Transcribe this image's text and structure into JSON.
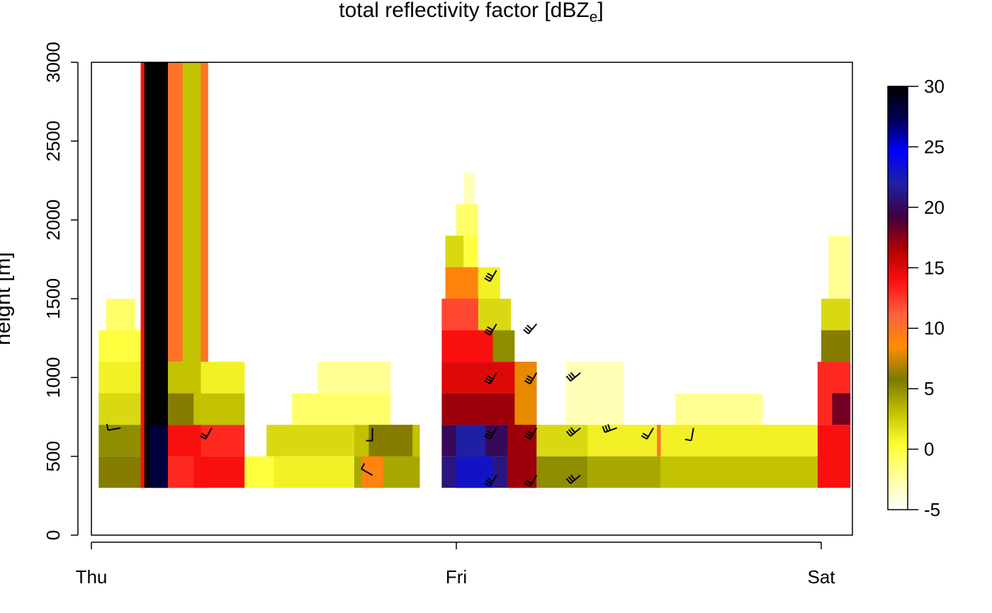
{
  "chart_data": {
    "type": "heatmap",
    "title": "total reflectivity factor [dBZ",
    "title_subscript": "e",
    "title_suffix": "]",
    "ylabel": "height [m]",
    "x_ticks": [
      "Thu",
      "Fri",
      "Sat"
    ],
    "y_ticks": [
      0,
      500,
      1000,
      1500,
      2000,
      2500,
      3000
    ],
    "xlim_days": [
      0,
      2.08
    ],
    "ylim": [
      0,
      3000
    ],
    "colorbar": {
      "ticks": [
        -5,
        0,
        5,
        10,
        15,
        20,
        25,
        30
      ],
      "range": [
        -5,
        30
      ],
      "colors": [
        "#ffffff",
        "#ffffa0",
        "#ffff30",
        "#c0c000",
        "#7a7a00",
        "#ff8c00",
        "#ff6040",
        "#ff1010",
        "#b00000",
        "#400040",
        "#2020a0",
        "#0000ff",
        "#000050",
        "#000000"
      ]
    },
    "height_levels_m": [
      300,
      500,
      700,
      900,
      1100,
      1300,
      1500,
      1700,
      1900,
      2100,
      2300,
      2500,
      2700,
      2900,
      3000
    ],
    "segments": [
      {
        "x": [
          0.02,
          0.14
        ],
        "y": [
          300,
          500
        ],
        "dbz": 6
      },
      {
        "x": [
          0.02,
          0.14
        ],
        "y": [
          500,
          700
        ],
        "dbz": 5
      },
      {
        "x": [
          0.02,
          0.14
        ],
        "y": [
          700,
          900
        ],
        "dbz": 2
      },
      {
        "x": [
          0.02,
          0.14
        ],
        "y": [
          900,
          1100
        ],
        "dbz": 1
      },
      {
        "x": [
          0.02,
          0.14
        ],
        "y": [
          1100,
          1300
        ],
        "dbz": 0
      },
      {
        "x": [
          0.04,
          0.12
        ],
        "y": [
          1300,
          1500
        ],
        "dbz": -1
      },
      {
        "x": [
          0.14,
          0.21
        ],
        "y": [
          300,
          3000
        ],
        "dbz": 30
      },
      {
        "x": [
          0.135,
          0.145
        ],
        "y": [
          300,
          3000
        ],
        "dbz": 14
      },
      {
        "x": [
          0.16,
          0.21
        ],
        "y": [
          300,
          700
        ],
        "dbz": 28
      },
      {
        "x": [
          0.21,
          0.28
        ],
        "y": [
          300,
          500
        ],
        "dbz": 11
      },
      {
        "x": [
          0.21,
          0.3
        ],
        "y": [
          500,
          700
        ],
        "dbz": 14
      },
      {
        "x": [
          0.21,
          0.3
        ],
        "y": [
          700,
          900
        ],
        "dbz": 6
      },
      {
        "x": [
          0.21,
          0.3
        ],
        "y": [
          900,
          1100
        ],
        "dbz": 3
      },
      {
        "x": [
          0.21,
          0.32
        ],
        "y": [
          300,
          500
        ],
        "dbz": 13
      },
      {
        "x": [
          0.28,
          0.42
        ],
        "y": [
          300,
          500
        ],
        "dbz": 14
      },
      {
        "x": [
          0.3,
          0.42
        ],
        "y": [
          500,
          700
        ],
        "dbz": 13
      },
      {
        "x": [
          0.28,
          0.42
        ],
        "y": [
          700,
          900
        ],
        "dbz": 3
      },
      {
        "x": [
          0.3,
          0.42
        ],
        "y": [
          900,
          1100
        ],
        "dbz": 1
      },
      {
        "x": [
          0.21,
          0.32
        ],
        "y": [
          1100,
          3000
        ],
        "dbz": 10
      },
      {
        "x": [
          0.25,
          0.3
        ],
        "y": [
          1100,
          3000
        ],
        "dbz": 3
      },
      {
        "x": [
          0.42,
          0.5
        ],
        "y": [
          300,
          500
        ],
        "dbz": 0
      },
      {
        "x": [
          0.48,
          0.72
        ],
        "y": [
          500,
          700
        ],
        "dbz": 2
      },
      {
        "x": [
          0.72,
          0.9
        ],
        "y": [
          300,
          500
        ],
        "dbz": 4
      },
      {
        "x": [
          0.72,
          0.9
        ],
        "y": [
          500,
          700
        ],
        "dbz": 3
      },
      {
        "x": [
          0.5,
          0.72
        ],
        "y": [
          300,
          500
        ],
        "dbz": 1
      },
      {
        "x": [
          0.55,
          0.82
        ],
        "y": [
          700,
          900
        ],
        "dbz": -1
      },
      {
        "x": [
          0.62,
          0.82
        ],
        "y": [
          900,
          1100
        ],
        "dbz": -2
      },
      {
        "x": [
          0.74,
          0.8
        ],
        "y": [
          300,
          500
        ],
        "dbz": 9
      },
      {
        "x": [
          0.76,
          0.88
        ],
        "y": [
          500,
          700
        ],
        "dbz": 6
      },
      {
        "x": [
          0.96,
          1.22
        ],
        "y": [
          300,
          500
        ],
        "dbz": 21
      },
      {
        "x": [
          0.96,
          1.22
        ],
        "y": [
          500,
          700
        ],
        "dbz": 20
      },
      {
        "x": [
          0.96,
          1.22
        ],
        "y": [
          700,
          900
        ],
        "dbz": 17
      },
      {
        "x": [
          0.96,
          1.22
        ],
        "y": [
          900,
          1100
        ],
        "dbz": 15
      },
      {
        "x": [
          0.96,
          1.12
        ],
        "y": [
          1100,
          1300
        ],
        "dbz": 14
      },
      {
        "x": [
          0.96,
          1.1
        ],
        "y": [
          1300,
          1500
        ],
        "dbz": 12
      },
      {
        "x": [
          0.97,
          1.06
        ],
        "y": [
          1500,
          1700
        ],
        "dbz": 9
      },
      {
        "x": [
          0.97,
          1.02
        ],
        "y": [
          1700,
          1900
        ],
        "dbz": 2
      },
      {
        "x": [
          1.1,
          1.16
        ],
        "y": [
          1100,
          1300
        ],
        "dbz": 5
      },
      {
        "x": [
          1.06,
          1.15
        ],
        "y": [
          1300,
          1500
        ],
        "dbz": 2
      },
      {
        "x": [
          1.06,
          1.12
        ],
        "y": [
          1500,
          1700
        ],
        "dbz": 1
      },
      {
        "x": [
          1.02,
          1.06
        ],
        "y": [
          1700,
          1900
        ],
        "dbz": 0
      },
      {
        "x": [
          1.0,
          1.06
        ],
        "y": [
          1900,
          2100
        ],
        "dbz": -1
      },
      {
        "x": [
          1.02,
          1.05
        ],
        "y": [
          2100,
          2300
        ],
        "dbz": -3
      },
      {
        "x": [
          1.0,
          1.1
        ],
        "y": [
          300,
          500
        ],
        "dbz": 23
      },
      {
        "x": [
          1.0,
          1.08
        ],
        "y": [
          500,
          700
        ],
        "dbz": 22
      },
      {
        "x": [
          1.14,
          1.22
        ],
        "y": [
          300,
          700
        ],
        "dbz": 17
      },
      {
        "x": [
          1.16,
          1.22
        ],
        "y": [
          700,
          1100
        ],
        "dbz": 8
      },
      {
        "x": [
          1.22,
          1.36
        ],
        "y": [
          300,
          500
        ],
        "dbz": 5
      },
      {
        "x": [
          1.22,
          1.36
        ],
        "y": [
          500,
          700
        ],
        "dbz": 2
      },
      {
        "x": [
          1.36,
          1.56
        ],
        "y": [
          300,
          500
        ],
        "dbz": 4
      },
      {
        "x": [
          1.36,
          1.56
        ],
        "y": [
          500,
          700
        ],
        "dbz": 1
      },
      {
        "x": [
          1.56,
          1.99
        ],
        "y": [
          300,
          500
        ],
        "dbz": 3
      },
      {
        "x": [
          1.56,
          1.99
        ],
        "y": [
          500,
          700
        ],
        "dbz": 1
      },
      {
        "x": [
          1.6,
          1.84
        ],
        "y": [
          700,
          900
        ],
        "dbz": -2
      },
      {
        "x": [
          1.3,
          1.46
        ],
        "y": [
          700,
          1100
        ],
        "dbz": -3
      },
      {
        "x": [
          1.55,
          1.56
        ],
        "y": [
          500,
          700
        ],
        "dbz": 10
      },
      {
        "x": [
          1.99,
          2.08
        ],
        "y": [
          300,
          700
        ],
        "dbz": 14
      },
      {
        "x": [
          1.99,
          2.08
        ],
        "y": [
          700,
          1100
        ],
        "dbz": 13
      },
      {
        "x": [
          2.0,
          2.08
        ],
        "y": [
          1100,
          1300
        ],
        "dbz": 6
      },
      {
        "x": [
          2.0,
          2.08
        ],
        "y": [
          1300,
          1500
        ],
        "dbz": 2
      },
      {
        "x": [
          2.02,
          2.08
        ],
        "y": [
          1500,
          1900
        ],
        "dbz": -2
      },
      {
        "x": [
          2.03,
          2.08
        ],
        "y": [
          700,
          900
        ],
        "dbz": 18
      }
    ],
    "wind_barbs": [
      {
        "x": 0.08,
        "y": 680,
        "dir": 260,
        "flags": 1
      },
      {
        "x": 0.33,
        "y": 680,
        "dir": 210,
        "flags": 2
      },
      {
        "x": 0.77,
        "y": 680,
        "dir": 180,
        "flags": 1
      },
      {
        "x": 0.77,
        "y": 380,
        "dir": 300,
        "flags": 1
      },
      {
        "x": 1.11,
        "y": 380,
        "dir": 210,
        "flags": 3
      },
      {
        "x": 1.22,
        "y": 380,
        "dir": 210,
        "flags": 2
      },
      {
        "x": 1.34,
        "y": 380,
        "dir": 230,
        "flags": 3
      },
      {
        "x": 1.11,
        "y": 680,
        "dir": 210,
        "flags": 3
      },
      {
        "x": 1.22,
        "y": 680,
        "dir": 210,
        "flags": 3
      },
      {
        "x": 1.34,
        "y": 680,
        "dir": 230,
        "flags": 3
      },
      {
        "x": 1.44,
        "y": 680,
        "dir": 250,
        "flags": 3
      },
      {
        "x": 1.54,
        "y": 680,
        "dir": 210,
        "flags": 2
      },
      {
        "x": 1.65,
        "y": 680,
        "dir": 190,
        "flags": 1
      },
      {
        "x": 1.11,
        "y": 1030,
        "dir": 210,
        "flags": 3
      },
      {
        "x": 1.22,
        "y": 1030,
        "dir": 210,
        "flags": 3
      },
      {
        "x": 1.34,
        "y": 1030,
        "dir": 230,
        "flags": 3
      },
      {
        "x": 1.11,
        "y": 1340,
        "dir": 210,
        "flags": 3
      },
      {
        "x": 1.22,
        "y": 1340,
        "dir": 220,
        "flags": 3
      },
      {
        "x": 1.11,
        "y": 1680,
        "dir": 210,
        "flags": 3
      }
    ]
  }
}
